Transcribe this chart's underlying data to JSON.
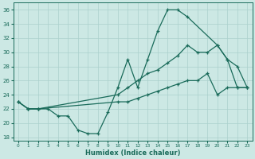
{
  "xlabel": "Humidex (Indice chaleur)",
  "background_color": "#cce8e4",
  "grid_color": "#aad0cc",
  "line_color": "#1a6b5a",
  "xlim": [
    -0.5,
    23.5
  ],
  "ylim": [
    17.5,
    37
  ],
  "xticks": [
    0,
    1,
    2,
    3,
    4,
    5,
    6,
    7,
    8,
    9,
    10,
    11,
    12,
    13,
    14,
    15,
    16,
    17,
    18,
    19,
    20,
    21,
    22,
    23
  ],
  "yticks": [
    18,
    20,
    22,
    24,
    26,
    28,
    30,
    32,
    34,
    36
  ],
  "line1_x": [
    0,
    1,
    2,
    3,
    4,
    5,
    6,
    7,
    8,
    9,
    10,
    11,
    12,
    13,
    14,
    15,
    16,
    17,
    20,
    21,
    22,
    23
  ],
  "line1_y": [
    23,
    22,
    22,
    22,
    21,
    21,
    19,
    18.5,
    18.5,
    21.5,
    25,
    29,
    25,
    29,
    33,
    36,
    36,
    35,
    31,
    29,
    25,
    25
  ],
  "line2_x": [
    0,
    1,
    2,
    10,
    11,
    12,
    13,
    14,
    15,
    16,
    17,
    18,
    19,
    20,
    21,
    22,
    23
  ],
  "line2_y": [
    23,
    22,
    22,
    24,
    25,
    26,
    27,
    27.5,
    28.5,
    29.5,
    31,
    30,
    30,
    31,
    29,
    28,
    25
  ],
  "line3_x": [
    0,
    1,
    2,
    10,
    11,
    12,
    13,
    14,
    15,
    16,
    17,
    18,
    19,
    20,
    21,
    22,
    23
  ],
  "line3_y": [
    23,
    22,
    22,
    23,
    23,
    23.5,
    24,
    24.5,
    25,
    25.5,
    26,
    26,
    27,
    24,
    25,
    25,
    25
  ],
  "marker": "+",
  "marker_size": 3.5,
  "lw": 0.9
}
